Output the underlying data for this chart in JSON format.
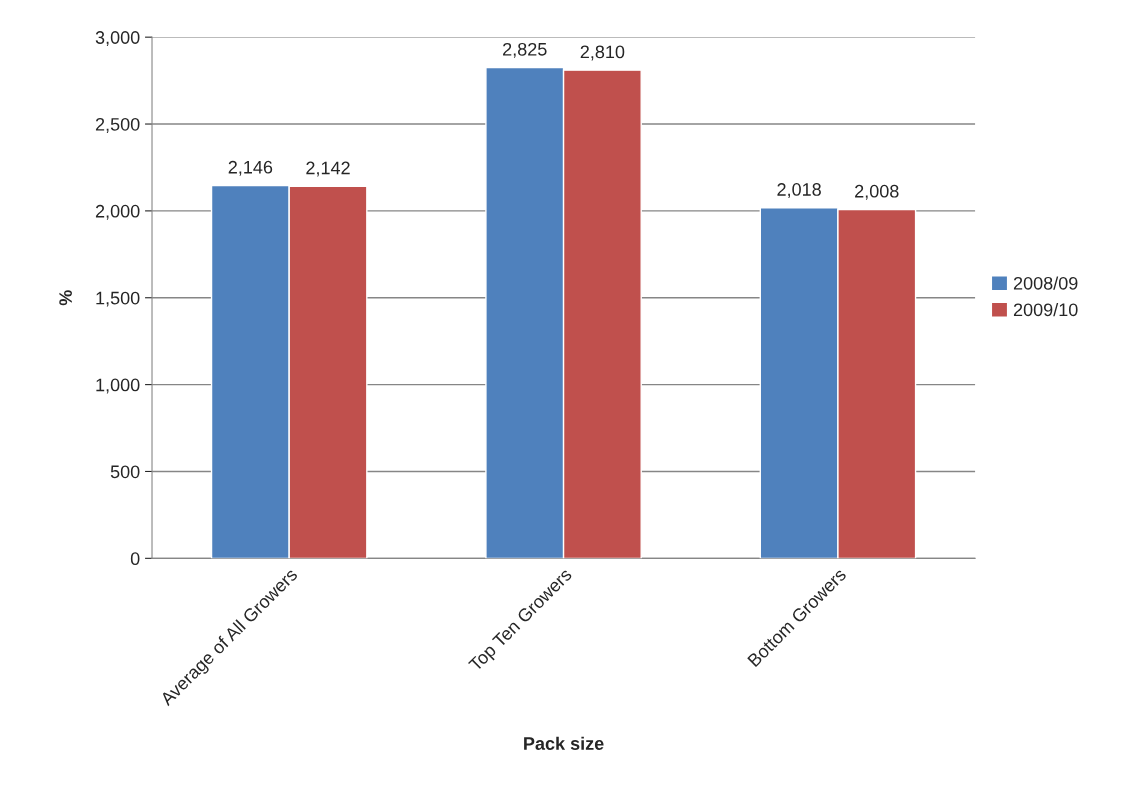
{
  "chart_data": {
    "type": "bar",
    "xlabel": "Pack size",
    "ylabel": "%",
    "categories": [
      "Average of All Growers",
      "Top Ten Growers",
      "Bottom Growers"
    ],
    "series": [
      {
        "name": "2008/09",
        "color": "#4f81bd",
        "values": [
          2146,
          2825,
          2018
        ],
        "value_labels": [
          "2,146",
          "2,825",
          "2,018"
        ]
      },
      {
        "name": "2009/10",
        "color": "#c0504d",
        "values": [
          2142,
          2810,
          2008
        ],
        "value_labels": [
          "2,142",
          "2,810",
          "2,008"
        ]
      }
    ],
    "ylim": [
      0,
      3000
    ],
    "yticks": [
      0,
      500,
      {
        "value": 1000,
        "label": "1,000"
      },
      {
        "value": 1500,
        "label": "1,500"
      },
      {
        "value": 2000,
        "label": "2,000"
      },
      {
        "value": 2500,
        "label": "2,500"
      },
      {
        "value": 3000,
        "label": "3,000"
      }
    ],
    "grid": "y",
    "legend": "right"
  }
}
